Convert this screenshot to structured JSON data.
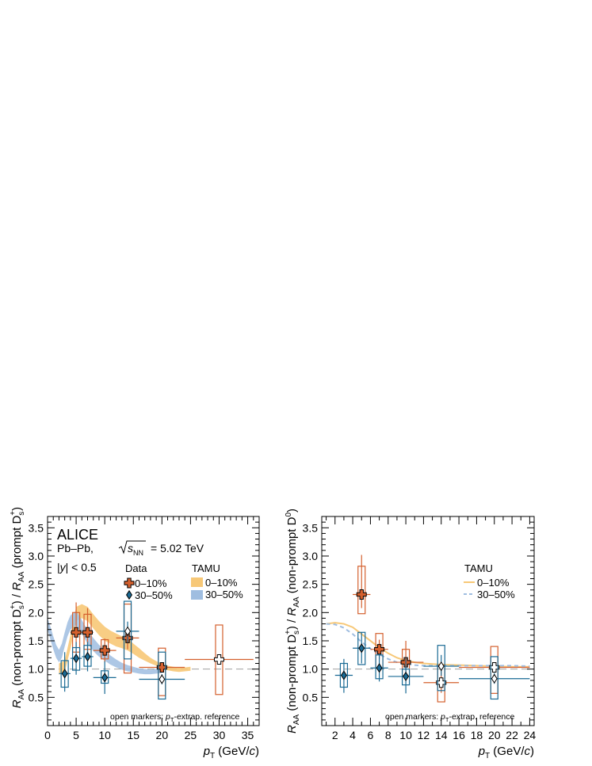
{
  "colors": {
    "data_010": "#d4602e",
    "data_3050": "#1a6a94",
    "tamu_010": "#f7c877",
    "tamu_3050": "#9fbde0",
    "unity": "#a0a0a0"
  },
  "chart_data": [
    {
      "type": "scatter",
      "panel": "left",
      "experiment": "ALICE",
      "system_label": "Pb–Pb, ",
      "energy_label": "= 5.02 TeV",
      "rapidity_label": "|y| < 0.5",
      "ylabel": "R_AA (non-prompt D_s^+) / R_AA (prompt D_s^+)",
      "xlabel": "p_T (GeV/c)",
      "xlim": [
        0,
        37
      ],
      "ylim": [
        0.0,
        3.7
      ],
      "xticks": [
        "0",
        "5",
        "10",
        "15",
        "20",
        "25",
        "30",
        "35"
      ],
      "yticks": [
        "0.5",
        "1.0",
        "1.5",
        "2.0",
        "2.5",
        "3.0",
        "3.5"
      ],
      "legend_data_title": "Data",
      "legend_model_title": "TAMU",
      "footnote": "open markers: p_T-extrap. reference",
      "series": [
        {
          "name": "0–10%",
          "marker": "cross",
          "points": [
            {
              "x": 5,
              "y": 1.65,
              "xerr": 1,
              "stat": [
                1.3,
                2.18
              ],
              "syst": [
                1.3,
                2.0
              ],
              "open": false
            },
            {
              "x": 7,
              "y": 1.65,
              "xerr": 1,
              "stat": [
                1.22,
                2.08
              ],
              "syst": [
                1.35,
                1.97
              ],
              "open": false
            },
            {
              "x": 10,
              "y": 1.33,
              "xerr": 2,
              "stat": [
                1.12,
                1.54
              ],
              "syst": [
                1.18,
                1.52
              ],
              "open": false
            },
            {
              "x": 14,
              "y": 1.55,
              "xerr": 2,
              "stat": [
                1.35,
                1.76
              ],
              "syst": [
                0.93,
                2.15
              ],
              "open": false
            },
            {
              "x": 20,
              "y": 1.03,
              "xerr": 4,
              "stat": [
                0.95,
                1.1
              ],
              "syst": [
                0.53,
                1.37
              ],
              "open": false
            },
            {
              "x": 30,
              "y": 1.17,
              "xerr": 6,
              "stat": [
                1.08,
                1.26
              ],
              "syst": [
                0.55,
                1.78
              ],
              "open": true
            }
          ]
        },
        {
          "name": "30–50%",
          "marker": "diamond",
          "points": [
            {
              "x": 3,
              "y": 0.92,
              "xerr": 1,
              "stat": [
                0.6,
                1.3
              ],
              "syst": [
                0.68,
                1.15
              ],
              "open": false
            },
            {
              "x": 5,
              "y": 1.19,
              "xerr": 1,
              "stat": [
                0.9,
                1.48
              ],
              "syst": [
                0.98,
                1.38
              ],
              "open": false
            },
            {
              "x": 7,
              "y": 1.22,
              "xerr": 1,
              "stat": [
                0.96,
                1.48
              ],
              "syst": [
                1.05,
                1.42
              ],
              "open": false
            },
            {
              "x": 10,
              "y": 0.85,
              "xerr": 2,
              "stat": [
                0.56,
                1.14
              ],
              "syst": [
                0.75,
                0.97
              ],
              "open": false
            },
            {
              "x": 14,
              "y": 1.67,
              "xerr": 2,
              "stat": [
                1.47,
                1.84
              ],
              "syst": [
                1.18,
                2.2
              ],
              "open": true
            },
            {
              "x": 20,
              "y": 0.82,
              "xerr": 4,
              "stat": [
                0.73,
                0.91
              ],
              "syst": [
                0.47,
                1.3
              ],
              "open": true
            }
          ]
        }
      ],
      "models": [
        {
          "name": "0–10%",
          "band": true,
          "x": [
            2,
            3,
            4,
            5,
            6,
            7,
            8,
            9,
            10,
            11,
            12,
            13,
            14,
            15,
            16,
            17,
            18,
            19,
            20,
            21,
            22,
            23,
            24,
            25
          ],
          "lo": [
            0.9,
            0.95,
            1.35,
            1.85,
            1.9,
            1.85,
            1.72,
            1.6,
            1.5,
            1.45,
            1.4,
            1.37,
            1.33,
            1.27,
            1.2,
            1.15,
            1.1,
            1.06,
            1.0,
            0.98,
            0.96,
            0.95,
            0.96,
            0.97
          ],
          "hi": [
            1.1,
            1.15,
            1.6,
            2.1,
            2.15,
            2.1,
            1.97,
            1.85,
            1.75,
            1.68,
            1.63,
            1.58,
            1.55,
            1.45,
            1.37,
            1.28,
            1.2,
            1.14,
            1.09,
            1.06,
            1.04,
            1.03,
            1.03,
            1.04
          ]
        },
        {
          "name": "30–50%",
          "band": true,
          "x": [
            0,
            0.5,
            1,
            1.5,
            2,
            2.5,
            3,
            3.5,
            4,
            5,
            6,
            7,
            8,
            9,
            10,
            11,
            12,
            13,
            14,
            15,
            16,
            17,
            18,
            19,
            20
          ],
          "lo": [
            1.7,
            1.52,
            1.35,
            1.2,
            1.12,
            1.2,
            1.4,
            1.58,
            1.7,
            1.78,
            1.62,
            1.45,
            1.32,
            1.22,
            1.15,
            1.08,
            1.03,
            0.99,
            0.96,
            0.94,
            0.92,
            0.91,
            0.91,
            0.92,
            0.93
          ],
          "hi": [
            1.9,
            1.75,
            1.58,
            1.43,
            1.34,
            1.45,
            1.65,
            1.83,
            1.95,
            2.03,
            1.87,
            1.68,
            1.55,
            1.43,
            1.34,
            1.24,
            1.17,
            1.11,
            1.07,
            1.04,
            1.01,
            1.0,
            0.99,
            1.0,
            1.01
          ]
        }
      ]
    },
    {
      "type": "scatter",
      "panel": "right",
      "ylabel": "R_AA (non-prompt D_s^+) / R_AA (non-prompt D^0)",
      "xlabel": "p_T (GeV/c)",
      "xlim": [
        0.5,
        24.5
      ],
      "ylim": [
        0.0,
        3.7
      ],
      "xticks": [
        "2",
        "4",
        "6",
        "8",
        "10",
        "12",
        "14",
        "16",
        "18",
        "20",
        "22",
        "24"
      ],
      "yticks": [
        "0.5",
        "1.0",
        "1.5",
        "2.0",
        "2.5",
        "3.0",
        "3.5"
      ],
      "legend_model_title": "TAMU",
      "footnote": "open markers: p_T-extrap. reference",
      "series": [
        {
          "name": "0–10%",
          "marker": "cross",
          "points": [
            {
              "x": 5,
              "y": 2.32,
              "xerr": 1,
              "stat": [
                2.08,
                3.02
              ],
              "syst": [
                1.98,
                2.82
              ],
              "open": false
            },
            {
              "x": 7,
              "y": 1.35,
              "xerr": 1,
              "stat": [
                1.18,
                1.52
              ],
              "syst": [
                1.02,
                1.63
              ],
              "open": false
            },
            {
              "x": 10,
              "y": 1.12,
              "xerr": 2,
              "stat": [
                0.95,
                1.5
              ],
              "syst": [
                0.88,
                1.35
              ],
              "open": false
            },
            {
              "x": 14,
              "y": 0.76,
              "xerr": 2,
              "stat": [
                0.58,
                1.02
              ],
              "syst": [
                0.42,
                1.07
              ],
              "open": true
            },
            {
              "x": 20,
              "y": 1.03,
              "xerr": 4,
              "stat": [
                0.98,
                1.08
              ],
              "syst": [
                0.57,
                1.4
              ],
              "open": true
            }
          ]
        },
        {
          "name": "30–50%",
          "marker": "diamond",
          "points": [
            {
              "x": 3,
              "y": 0.89,
              "xerr": 1,
              "stat": [
                0.58,
                1.18
              ],
              "syst": [
                0.68,
                1.1
              ],
              "open": false
            },
            {
              "x": 5,
              "y": 1.37,
              "xerr": 1,
              "stat": [
                1.1,
                1.65
              ],
              "syst": [
                1.08,
                1.65
              ],
              "open": false
            },
            {
              "x": 7,
              "y": 1.02,
              "xerr": 1,
              "stat": [
                0.78,
                1.27
              ],
              "syst": [
                0.83,
                1.25
              ],
              "open": false
            },
            {
              "x": 10,
              "y": 0.87,
              "xerr": 2,
              "stat": [
                0.57,
                1.2
              ],
              "syst": [
                0.72,
                1.0
              ],
              "open": false
            },
            {
              "x": 14,
              "y": 1.05,
              "xerr": 2,
              "stat": [
                0.88,
                1.25
              ],
              "syst": [
                0.62,
                1.42
              ],
              "open": true
            },
            {
              "x": 20,
              "y": 0.83,
              "xerr": 4,
              "stat": [
                0.74,
                0.93
              ],
              "syst": [
                0.47,
                1.22
              ],
              "open": true
            }
          ]
        }
      ],
      "models": [
        {
          "name": "0–10%",
          "band": false,
          "style": "solid",
          "x": [
            1,
            2,
            3,
            4,
            5,
            6,
            7,
            8,
            9,
            10,
            11,
            12,
            13,
            14,
            16,
            18,
            20,
            22,
            24
          ],
          "y": [
            1.8,
            1.82,
            1.8,
            1.74,
            1.62,
            1.5,
            1.38,
            1.28,
            1.2,
            1.15,
            1.12,
            1.1,
            1.09,
            1.08,
            1.07,
            1.06,
            1.05,
            1.04,
            1.04
          ]
        },
        {
          "name": "30–50%",
          "band": false,
          "style": "dashed",
          "x": [
            1,
            2,
            3,
            4,
            5,
            6,
            7,
            8,
            9,
            10,
            11,
            12,
            13,
            14,
            16,
            18,
            20,
            22,
            24
          ],
          "y": [
            1.8,
            1.79,
            1.73,
            1.62,
            1.48,
            1.36,
            1.26,
            1.18,
            1.12,
            1.09,
            1.07,
            1.06,
            1.06,
            1.06,
            1.06,
            1.06,
            1.06,
            1.06,
            1.05
          ]
        }
      ]
    }
  ]
}
